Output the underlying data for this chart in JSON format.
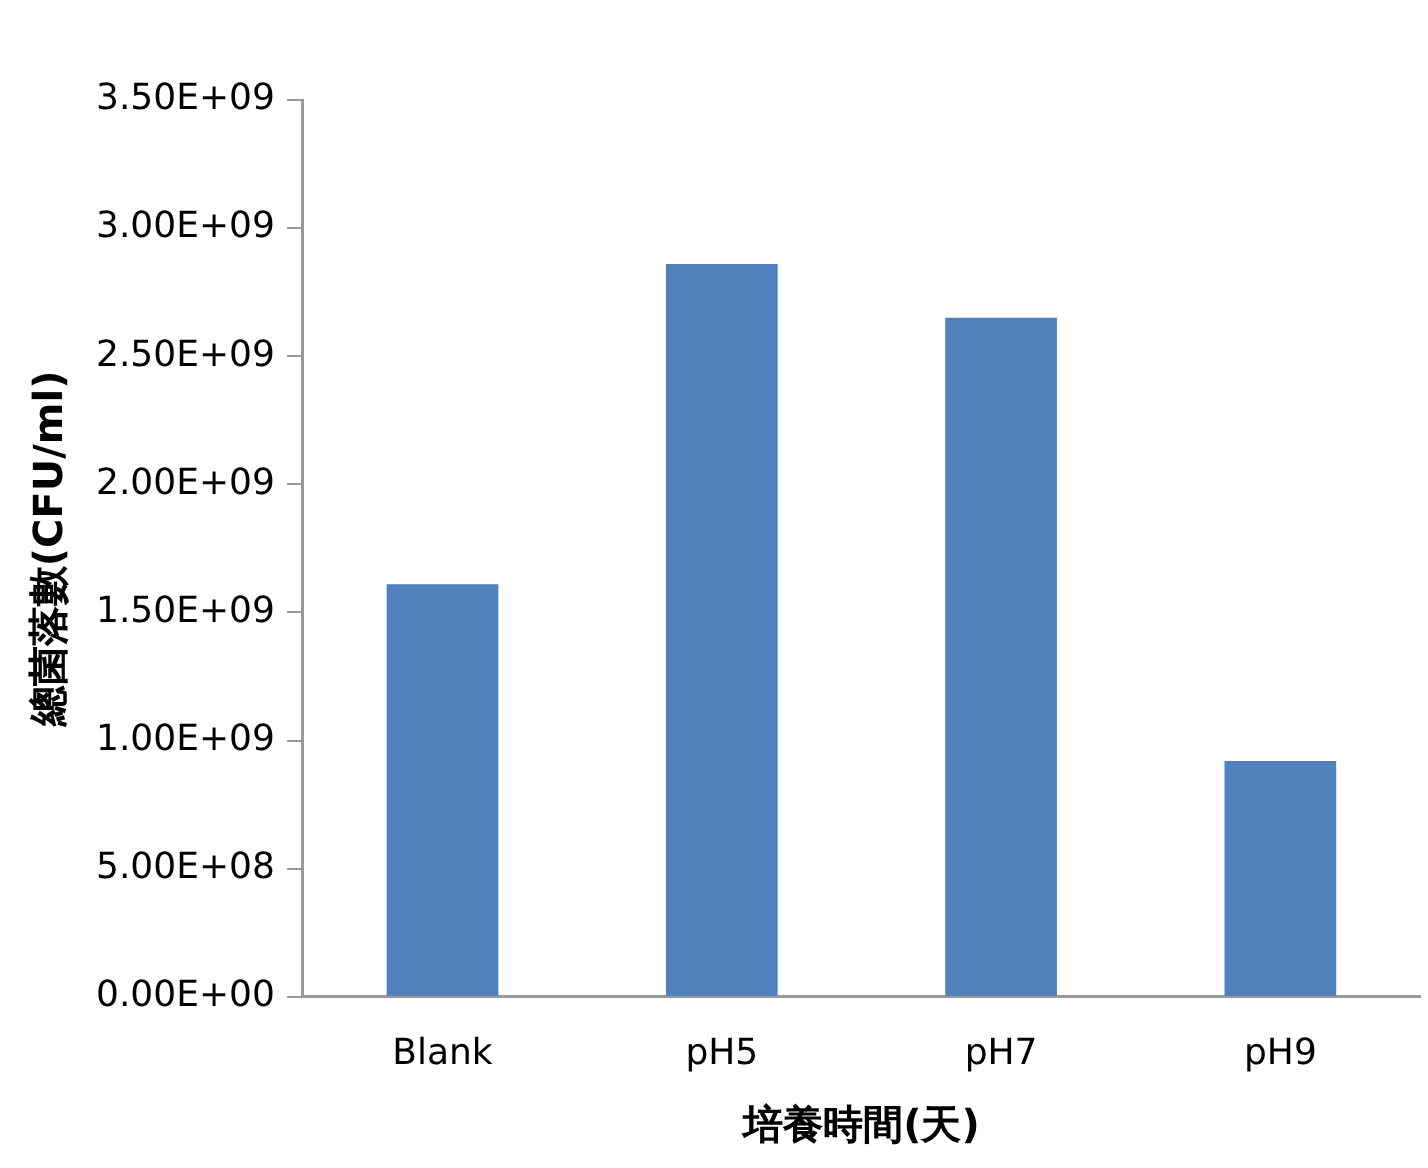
{
  "chart_data": {
    "type": "bar",
    "xlabel": "培養時間(天)",
    "ylabel": "總菌落數(CFU/ml)",
    "categories": [
      "Blank",
      "pH5",
      "pH7",
      "pH9"
    ],
    "values": [
      1610000000.0,
      2860000000.0,
      2650000000.0,
      920000000.0
    ],
    "color": "#4f81bd",
    "ylim": [
      0,
      3500000000.0
    ],
    "yticks": [
      {
        "value": 0,
        "label": "0.00E+00"
      },
      {
        "value": 500000000.0,
        "label": "5.00E+08"
      },
      {
        "value": 1000000000.0,
        "label": "1.00E+09"
      },
      {
        "value": 1500000000.0,
        "label": "1.50E+09"
      },
      {
        "value": 2000000000.0,
        "label": "2.00E+09"
      },
      {
        "value": 2500000000.0,
        "label": "2.50E+09"
      },
      {
        "value": 3000000000.0,
        "label": "3.00E+09"
      },
      {
        "value": 3500000000.0,
        "label": "3.50E+09"
      }
    ],
    "grid": false,
    "legend": false
  }
}
